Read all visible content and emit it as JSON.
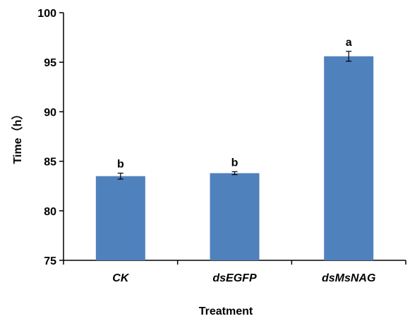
{
  "chart_data": {
    "type": "bar",
    "categories": [
      "CK",
      "dsEGFP",
      "dsMsNAG"
    ],
    "values": [
      83.5,
      83.8,
      95.6
    ],
    "error": [
      0.3,
      0.15,
      0.5
    ],
    "significance": [
      "b",
      "b",
      "a"
    ],
    "xlabel": "Treatment",
    "ylabel": "Time（h）",
    "ylim": [
      75,
      100
    ],
    "yticks": [
      75,
      80,
      85,
      90,
      95,
      100
    ],
    "grid": false,
    "bar_color": "#4f81bd"
  }
}
